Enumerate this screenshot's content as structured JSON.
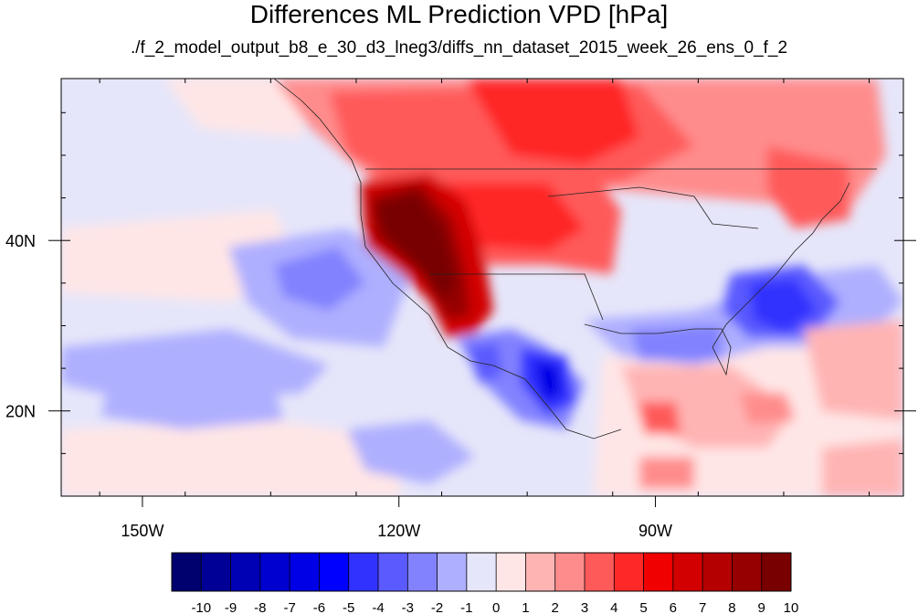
{
  "title": "Differences ML Prediction VPD [hPa]",
  "subtitle": "./f_2_model_output_b8_e_30_d3_lneg3/diffs_nn_dataset_2015_week_26_ens_0_f_2",
  "map": {
    "lon_range": [
      -159.5,
      -61
    ],
    "lat_range": [
      10,
      59
    ],
    "x_ticks": [
      {
        "lon": -150,
        "label": "150W"
      },
      {
        "lon": -120,
        "label": "120W"
      },
      {
        "lon": -90,
        "label": "90W"
      }
    ],
    "y_ticks": [
      {
        "lat": 40,
        "label": "40N"
      },
      {
        "lat": 20,
        "label": "20N"
      }
    ]
  },
  "colorbar": {
    "colors": [
      "#00006e",
      "#000096",
      "#0000b4",
      "#0000cf",
      "#0000e6",
      "#0000ff",
      "#3232ff",
      "#5a5aff",
      "#8282ff",
      "#afafff",
      "#e6e6fa",
      "#ffe6e6",
      "#ffb4b4",
      "#ff8c8c",
      "#ff5a5a",
      "#ff2828",
      "#f00000",
      "#d20000",
      "#b40000",
      "#960000",
      "#780000"
    ],
    "labels": [
      "-10",
      "-9",
      "-8",
      "-7",
      "-6",
      "-5",
      "-4",
      "-3",
      "-2",
      "-1",
      "0",
      "1",
      "2",
      "3",
      "4",
      "5",
      "6",
      "7",
      "8",
      "9",
      "10"
    ]
  }
}
